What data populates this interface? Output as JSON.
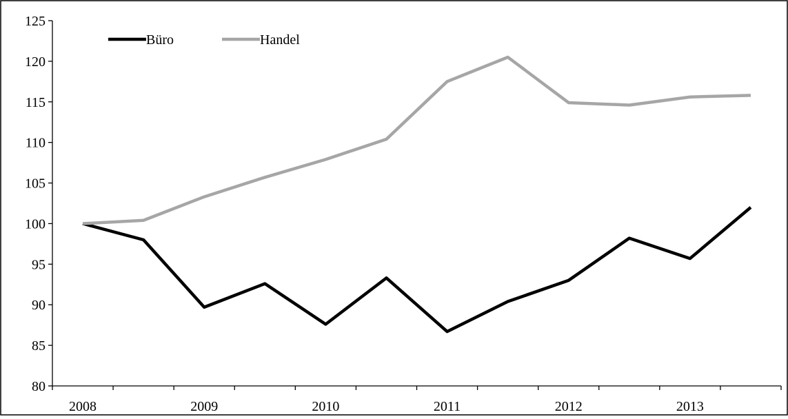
{
  "chart_data": {
    "type": "line",
    "title": "",
    "xlabel": "",
    "ylabel": "",
    "ylim": [
      80,
      125
    ],
    "y_ticks": [
      80,
      85,
      90,
      95,
      100,
      105,
      110,
      115,
      120,
      125
    ],
    "x_category_labels": [
      "2008",
      "2009",
      "2010",
      "2011",
      "2012",
      "2013"
    ],
    "points_per_category": 2,
    "legend_position": "top-left",
    "grid": false,
    "series": [
      {
        "name": "Büro",
        "color": "#000000",
        "values": [
          100.0,
          98.0,
          89.7,
          92.6,
          87.6,
          93.3,
          86.7,
          90.4,
          93.0,
          98.2,
          95.7,
          102.0
        ]
      },
      {
        "name": "Handel",
        "color": "#a6a6a6",
        "values": [
          100.0,
          100.4,
          103.3,
          105.7,
          107.9,
          110.4,
          117.5,
          120.5,
          114.9,
          114.6,
          115.6,
          115.8
        ]
      }
    ]
  }
}
